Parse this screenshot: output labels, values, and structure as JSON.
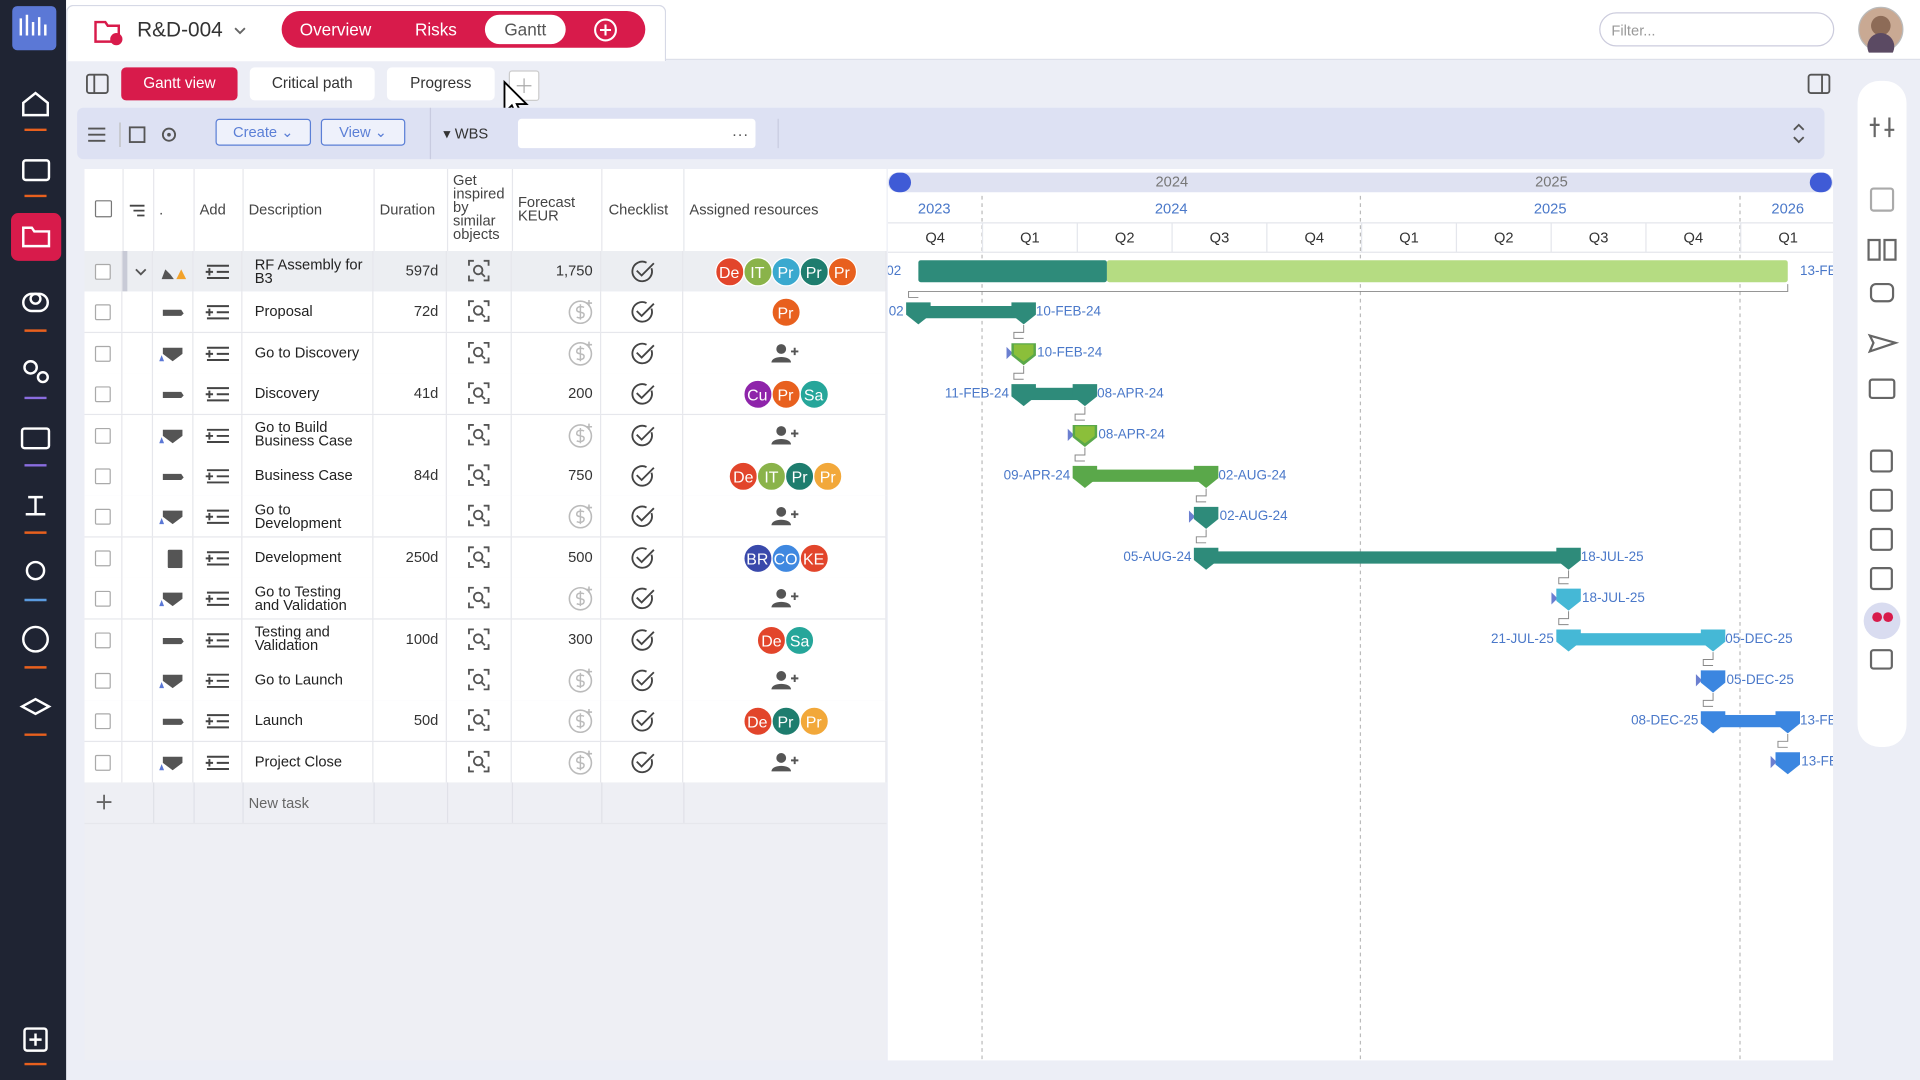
{
  "header": {
    "project": "R&D-004",
    "tabs": [
      "Overview",
      "Risks",
      "Gantt"
    ],
    "filter": "Filter..."
  },
  "views": [
    "Gantt view",
    "Critical path",
    "Progress"
  ],
  "toolbar": {
    "create": "Create",
    "view": "View",
    "wbs": "WBS",
    "more": "..."
  },
  "table": {
    "columns": [
      ".",
      "Add",
      "Description",
      "Duration",
      "Get inspired by similar objects",
      "Forecast KEUR",
      "Checklist",
      "Assigned resources"
    ],
    "rows": [
      {
        "description": "RF Assembly for B3",
        "duration": "597d",
        "forecast": "1,750",
        "resources": [
          {
            "initials": "De",
            "color": "#e2452b"
          },
          {
            "initials": "IT",
            "color": "#8ab34a"
          },
          {
            "initials": "Pr",
            "color": "#3aa9cf"
          },
          {
            "initials": "Pr",
            "color": "#1e7d6e"
          },
          {
            "initials": "Pr",
            "color": "#e8601e"
          }
        ]
      },
      {
        "description": "Proposal",
        "duration": "72d",
        "resources": [
          {
            "initials": "Pr",
            "color": "#e8601e"
          }
        ]
      },
      {
        "description": "Go to Discovery"
      },
      {
        "description": "Discovery",
        "duration": "41d",
        "forecast": "200",
        "resources": [
          {
            "initials": "Cu",
            "color": "#8e24aa"
          },
          {
            "initials": "Pr",
            "color": "#e8601e"
          },
          {
            "initials": "Sa",
            "color": "#26a69a"
          }
        ]
      },
      {
        "description": "Go to Build Business Case"
      },
      {
        "description": "Business Case",
        "duration": "84d",
        "forecast": "750",
        "resources": [
          {
            "initials": "De",
            "color": "#e2452b"
          },
          {
            "initials": "IT",
            "color": "#8ab34a"
          },
          {
            "initials": "Pr",
            "color": "#1e7d6e"
          },
          {
            "initials": "Pr",
            "color": "#f2a83a"
          }
        ]
      },
      {
        "description": "Go to Development"
      },
      {
        "description": "Development",
        "duration": "250d",
        "forecast": "500",
        "resources": [
          {
            "initials": "BR",
            "color": "#3949ab"
          },
          {
            "initials": "CO",
            "color": "#3f88e0"
          },
          {
            "initials": "KE",
            "color": "#e2452b"
          }
        ]
      },
      {
        "description": "Go to Testing and Validation"
      },
      {
        "description": "Testing and Validation",
        "duration": "100d",
        "forecast": "300",
        "resources": [
          {
            "initials": "De",
            "color": "#e2452b"
          },
          {
            "initials": "Sa",
            "color": "#26a69a"
          }
        ]
      },
      {
        "description": "Go to Launch"
      },
      {
        "description": "Launch",
        "duration": "50d",
        "resources": [
          {
            "initials": "De",
            "color": "#e2452b"
          },
          {
            "initials": "Pr",
            "color": "#1e7d6e"
          },
          {
            "initials": "Pr",
            "color": "#f2a83a"
          }
        ]
      },
      {
        "description": "Project Close"
      }
    ],
    "new_task": "New task"
  },
  "timeline": {
    "top_years": [
      "2024",
      "2025"
    ],
    "years": [
      "2023",
      "2024",
      "2025",
      "2026"
    ],
    "quarters": [
      "Q4",
      "Q1",
      "Q2",
      "Q3",
      "Q4",
      "Q1",
      "Q2",
      "Q3",
      "Q4",
      "Q1"
    ]
  },
  "gantt": [
    {
      "start": "02",
      "end": "13-FE"
    },
    {
      "start": "02",
      "end": "10-FEB-24"
    },
    {
      "date": "10-FEB-24"
    },
    {
      "start": "11-FEB-24",
      "end": "08-APR-24"
    },
    {
      "date": "08-APR-24"
    },
    {
      "start": "09-APR-24",
      "end": "02-AUG-24"
    },
    {
      "date": "02-AUG-24"
    },
    {
      "start": "05-AUG-24",
      "end": "18-JUL-25"
    },
    {
      "date": "18-JUL-25"
    },
    {
      "start": "21-JUL-25",
      "end": "05-DEC-25"
    },
    {
      "date": "05-DEC-25"
    },
    {
      "start": "08-DEC-25",
      "end": "13-FE"
    },
    {
      "date": "13-FE"
    }
  ]
}
